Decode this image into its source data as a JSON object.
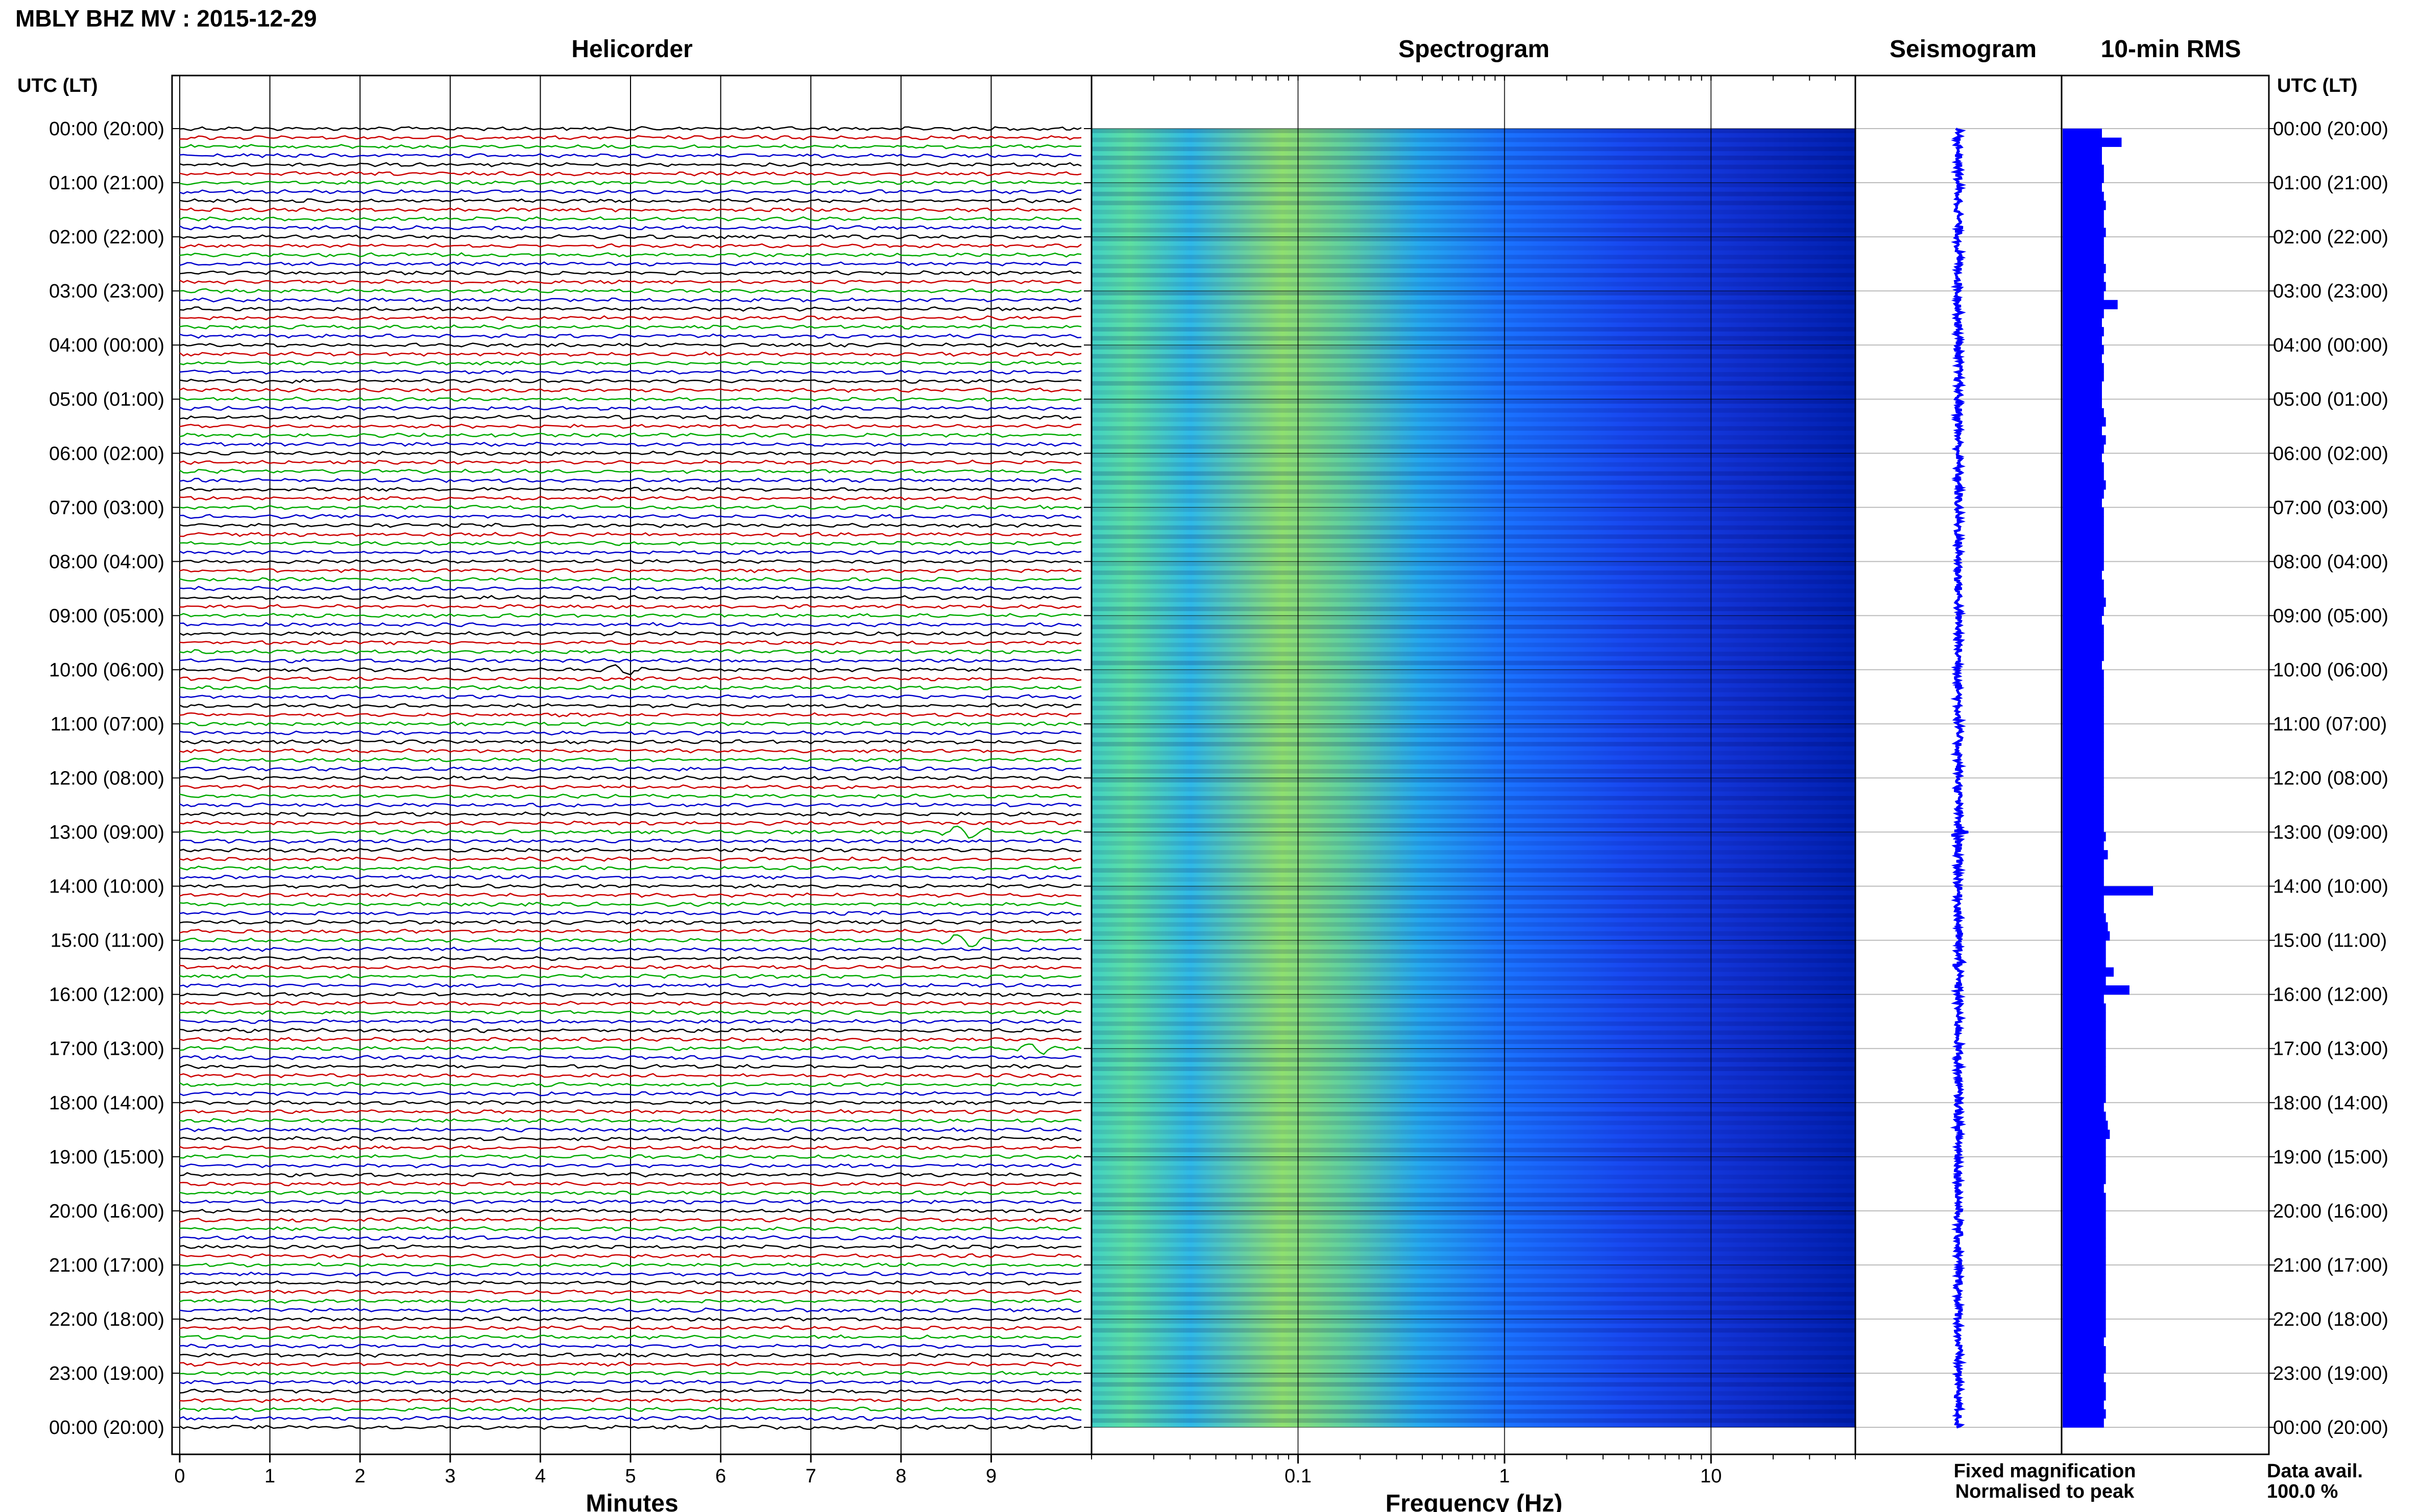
{
  "title": "MBLY BHZ MV : 2015-12-29",
  "panel_titles": {
    "helicorder": "Helicorder",
    "spectrogram": "Spectrogram",
    "seismogram": "Seismogram",
    "rms": "10-min RMS"
  },
  "time_axis_label": "UTC (LT)",
  "hour_labels": [
    "00:00 (20:00)",
    "01:00 (21:00)",
    "02:00 (22:00)",
    "03:00 (23:00)",
    "04:00 (00:00)",
    "05:00 (01:00)",
    "06:00 (02:00)",
    "07:00 (03:00)",
    "08:00 (04:00)",
    "09:00 (05:00)",
    "10:00 (06:00)",
    "11:00 (07:00)",
    "12:00 (08:00)",
    "13:00 (09:00)",
    "14:00 (10:00)",
    "15:00 (11:00)",
    "16:00 (12:00)",
    "17:00 (13:00)",
    "18:00 (14:00)",
    "19:00 (15:00)",
    "20:00 (16:00)",
    "21:00 (17:00)",
    "22:00 (18:00)",
    "23:00 (19:00)",
    "00:00 (20:00)"
  ],
  "legend": {
    "fixed": "Fixed magnification",
    "normalised": "Normalised to peak",
    "fixed_color": "#0000ff",
    "normalised_color": "#ff0000"
  },
  "data_availability": {
    "label": "Data avail.",
    "value": "100.0 %"
  },
  "chart_data": [
    {
      "type": "line",
      "panel": "helicorder",
      "xlabel": "Minutes",
      "x_ticks": [
        0,
        1,
        2,
        3,
        4,
        5,
        6,
        7,
        8,
        9
      ],
      "xlim": [
        0,
        10
      ],
      "rows_per_hour": 6,
      "trace_colors": [
        "#000000",
        "#cc0000",
        "#00aa00",
        "#0000cc"
      ],
      "notable_events": [
        {
          "hour": 13,
          "minute": 8.7
        },
        {
          "hour": 15,
          "minute": 8.7
        },
        {
          "hour": 10,
          "minute": 4.9
        },
        {
          "hour": 17,
          "minute": 9.5
        }
      ]
    },
    {
      "type": "heatmap",
      "panel": "spectrogram",
      "xlabel": "Frequency (Hz)",
      "xscale": "log",
      "xlim": [
        0.01,
        50
      ],
      "x_ticks": [
        0.1,
        1,
        10
      ],
      "x_tick_labels": [
        "0.1",
        "1",
        "10"
      ],
      "colormap": "jet"
    },
    {
      "type": "line",
      "panel": "seismogram",
      "color": "#0000ff"
    },
    {
      "type": "bar",
      "panel": "rms",
      "color": "#0000ff",
      "orientation": "horizontal",
      "values": [
        1.0,
        1.5,
        1.0,
        1.0,
        1.05,
        1.05,
        1.0,
        1.05,
        1.1,
        1.05,
        1.05,
        1.1,
        1.05,
        1.05,
        1.05,
        1.1,
        1.05,
        1.1,
        1.05,
        1.4,
        1.05,
        1.0,
        1.05,
        1.0,
        1.05,
        1.0,
        1.05,
        1.05,
        1.0,
        1.0,
        1.0,
        1.05,
        1.1,
        1.0,
        1.1,
        1.05,
        1.0,
        1.05,
        1.05,
        1.1,
        1.05,
        1.0,
        1.05,
        1.05,
        1.05,
        1.05,
        1.05,
        1.05,
        1.05,
        1.0,
        1.05,
        1.05,
        1.1,
        1.05,
        1.0,
        1.05,
        1.05,
        1.05,
        1.05,
        1.0,
        1.05,
        1.05,
        1.05,
        1.05,
        1.05,
        1.05,
        1.05,
        1.05,
        1.05,
        1.05,
        1.05,
        1.05,
        1.05,
        1.05,
        1.05,
        1.05,
        1.05,
        1.05,
        1.1,
        1.05,
        1.15,
        1.05,
        1.05,
        1.05,
        2.3,
        1.05,
        1.05,
        1.1,
        1.15,
        1.2,
        1.1,
        1.1,
        1.1,
        1.3,
        1.1,
        1.7,
        1.05,
        1.1,
        1.1,
        1.1,
        1.1,
        1.1,
        1.1,
        1.1,
        1.1,
        1.1,
        1.1,
        1.1,
        1.05,
        1.1,
        1.15,
        1.2,
        1.1,
        1.1,
        1.1,
        1.1,
        1.1,
        1.05,
        1.1,
        1.1,
        1.1,
        1.1,
        1.1,
        1.1,
        1.1,
        1.1,
        1.1,
        1.1,
        1.1,
        1.1,
        1.1,
        1.1,
        1.1,
        1.1,
        1.05,
        1.1,
        1.1,
        1.1,
        1.05,
        1.1,
        1.1,
        1.05,
        1.1,
        1.05
      ]
    }
  ]
}
